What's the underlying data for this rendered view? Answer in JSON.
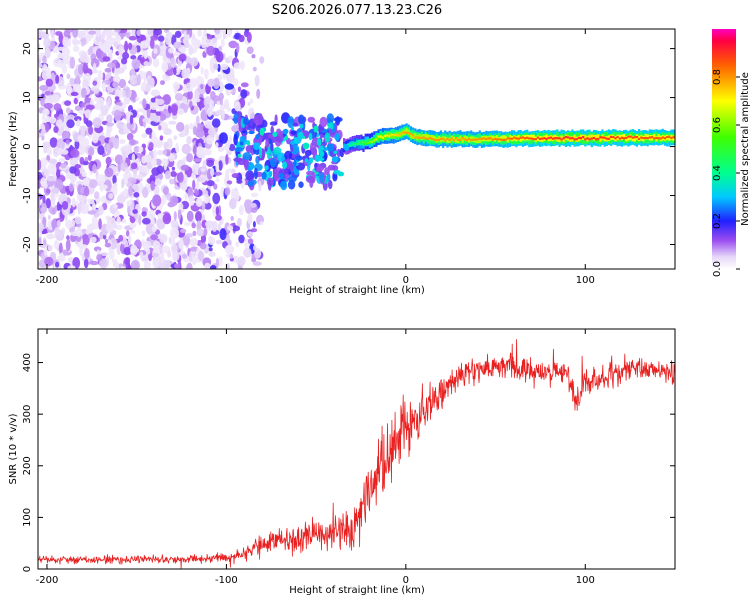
{
  "title": "S206.2026.077.13.23.C26",
  "chart_data": [
    {
      "type": "heatmap",
      "name": "spectrogram",
      "xlabel": "Height of straight line (km)",
      "ylabel": "Frequency (Hz)",
      "xlim": [
        -205,
        150
      ],
      "ylim": [
        -25,
        24
      ],
      "xticks": [
        -200,
        -100,
        0,
        100
      ],
      "yticks": [
        -20,
        -10,
        0,
        10,
        20
      ],
      "colorbar": {
        "label": "Normalized spectral amplitude",
        "range": [
          0,
          1
        ],
        "ticks": [
          "0.0",
          "0.2",
          "0.4",
          "0.6",
          "0.8"
        ],
        "tick_values": [
          0,
          0.2,
          0.4,
          0.6,
          0.8
        ],
        "stops": [
          {
            "v": 0.0,
            "c": "#ffffff"
          },
          {
            "v": 0.05,
            "c": "#e6d8f8"
          },
          {
            "v": 0.12,
            "c": "#9a4cf0"
          },
          {
            "v": 0.2,
            "c": "#2020ff"
          },
          {
            "v": 0.3,
            "c": "#00c8ff"
          },
          {
            "v": 0.4,
            "c": "#00ff90"
          },
          {
            "v": 0.55,
            "c": "#40ff00"
          },
          {
            "v": 0.7,
            "c": "#ffff00"
          },
          {
            "v": 0.85,
            "c": "#ff6000"
          },
          {
            "v": 0.95,
            "c": "#ff0040"
          },
          {
            "v": 1.0,
            "c": "#ff00c0"
          }
        ]
      },
      "signal_track": {
        "x": [
          -35,
          -28,
          -20,
          -15,
          -10,
          -5,
          0,
          5,
          10,
          15,
          20,
          40,
          60,
          80,
          100,
          120,
          150
        ],
        "freq": [
          0.0,
          0.5,
          1.0,
          2.0,
          2.2,
          2.5,
          3.0,
          2.0,
          1.8,
          1.5,
          1.5,
          1.5,
          1.6,
          1.7,
          1.7,
          1.8,
          1.8
        ],
        "amplitude": [
          0.35,
          0.45,
          0.6,
          0.7,
          0.72,
          0.75,
          0.8,
          0.78,
          0.8,
          0.8,
          0.8,
          0.8,
          0.85,
          0.9,
          0.9,
          0.88,
          0.85
        ]
      },
      "noise_regions": [
        {
          "x_range": [
            -205,
            -110
          ],
          "density": "high",
          "amplitude": [
            0.03,
            0.15
          ]
        },
        {
          "x_range": [
            -110,
            -80
          ],
          "density": "medium",
          "amplitude": [
            0.03,
            0.2
          ]
        },
        {
          "x_range": [
            -95,
            -35
          ],
          "density": "high",
          "amplitude": [
            0.12,
            0.35
          ],
          "freq_range": [
            -8,
            6
          ]
        }
      ]
    },
    {
      "type": "line",
      "name": "snr",
      "xlabel": "Height of straight line (km)",
      "ylabel": "SNR (10 * v/v)",
      "xlim": [
        -205,
        150
      ],
      "ylim": [
        0,
        465
      ],
      "xticks": [
        -200,
        -100,
        0,
        100
      ],
      "yticks": [
        0,
        100,
        200,
        300,
        400
      ],
      "color": "#e82020",
      "series": [
        {
          "name": "SNR",
          "x": [
            -205,
            -180,
            -150,
            -120,
            -100,
            -90,
            -80,
            -70,
            -60,
            -50,
            -40,
            -30,
            -25,
            -20,
            -15,
            -10,
            -5,
            0,
            5,
            10,
            15,
            20,
            25,
            30,
            40,
            50,
            60,
            70,
            80,
            90,
            95,
            100,
            110,
            120,
            130,
            140,
            150
          ],
          "mean": [
            18,
            17,
            18,
            19,
            22,
            30,
            45,
            60,
            58,
            65,
            70,
            75,
            110,
            150,
            200,
            220,
            250,
            280,
            290,
            300,
            320,
            340,
            360,
            375,
            385,
            390,
            395,
            380,
            385,
            380,
            320,
            360,
            375,
            380,
            390,
            380,
            380
          ],
          "spread": [
            12,
            12,
            12,
            12,
            14,
            20,
            30,
            40,
            40,
            45,
            50,
            55,
            60,
            80,
            90,
            110,
            100,
            90,
            80,
            70,
            60,
            50,
            40,
            35,
            35,
            35,
            35,
            35,
            35,
            35,
            45,
            35,
            35,
            35,
            35,
            35,
            35
          ]
        }
      ]
    }
  ]
}
